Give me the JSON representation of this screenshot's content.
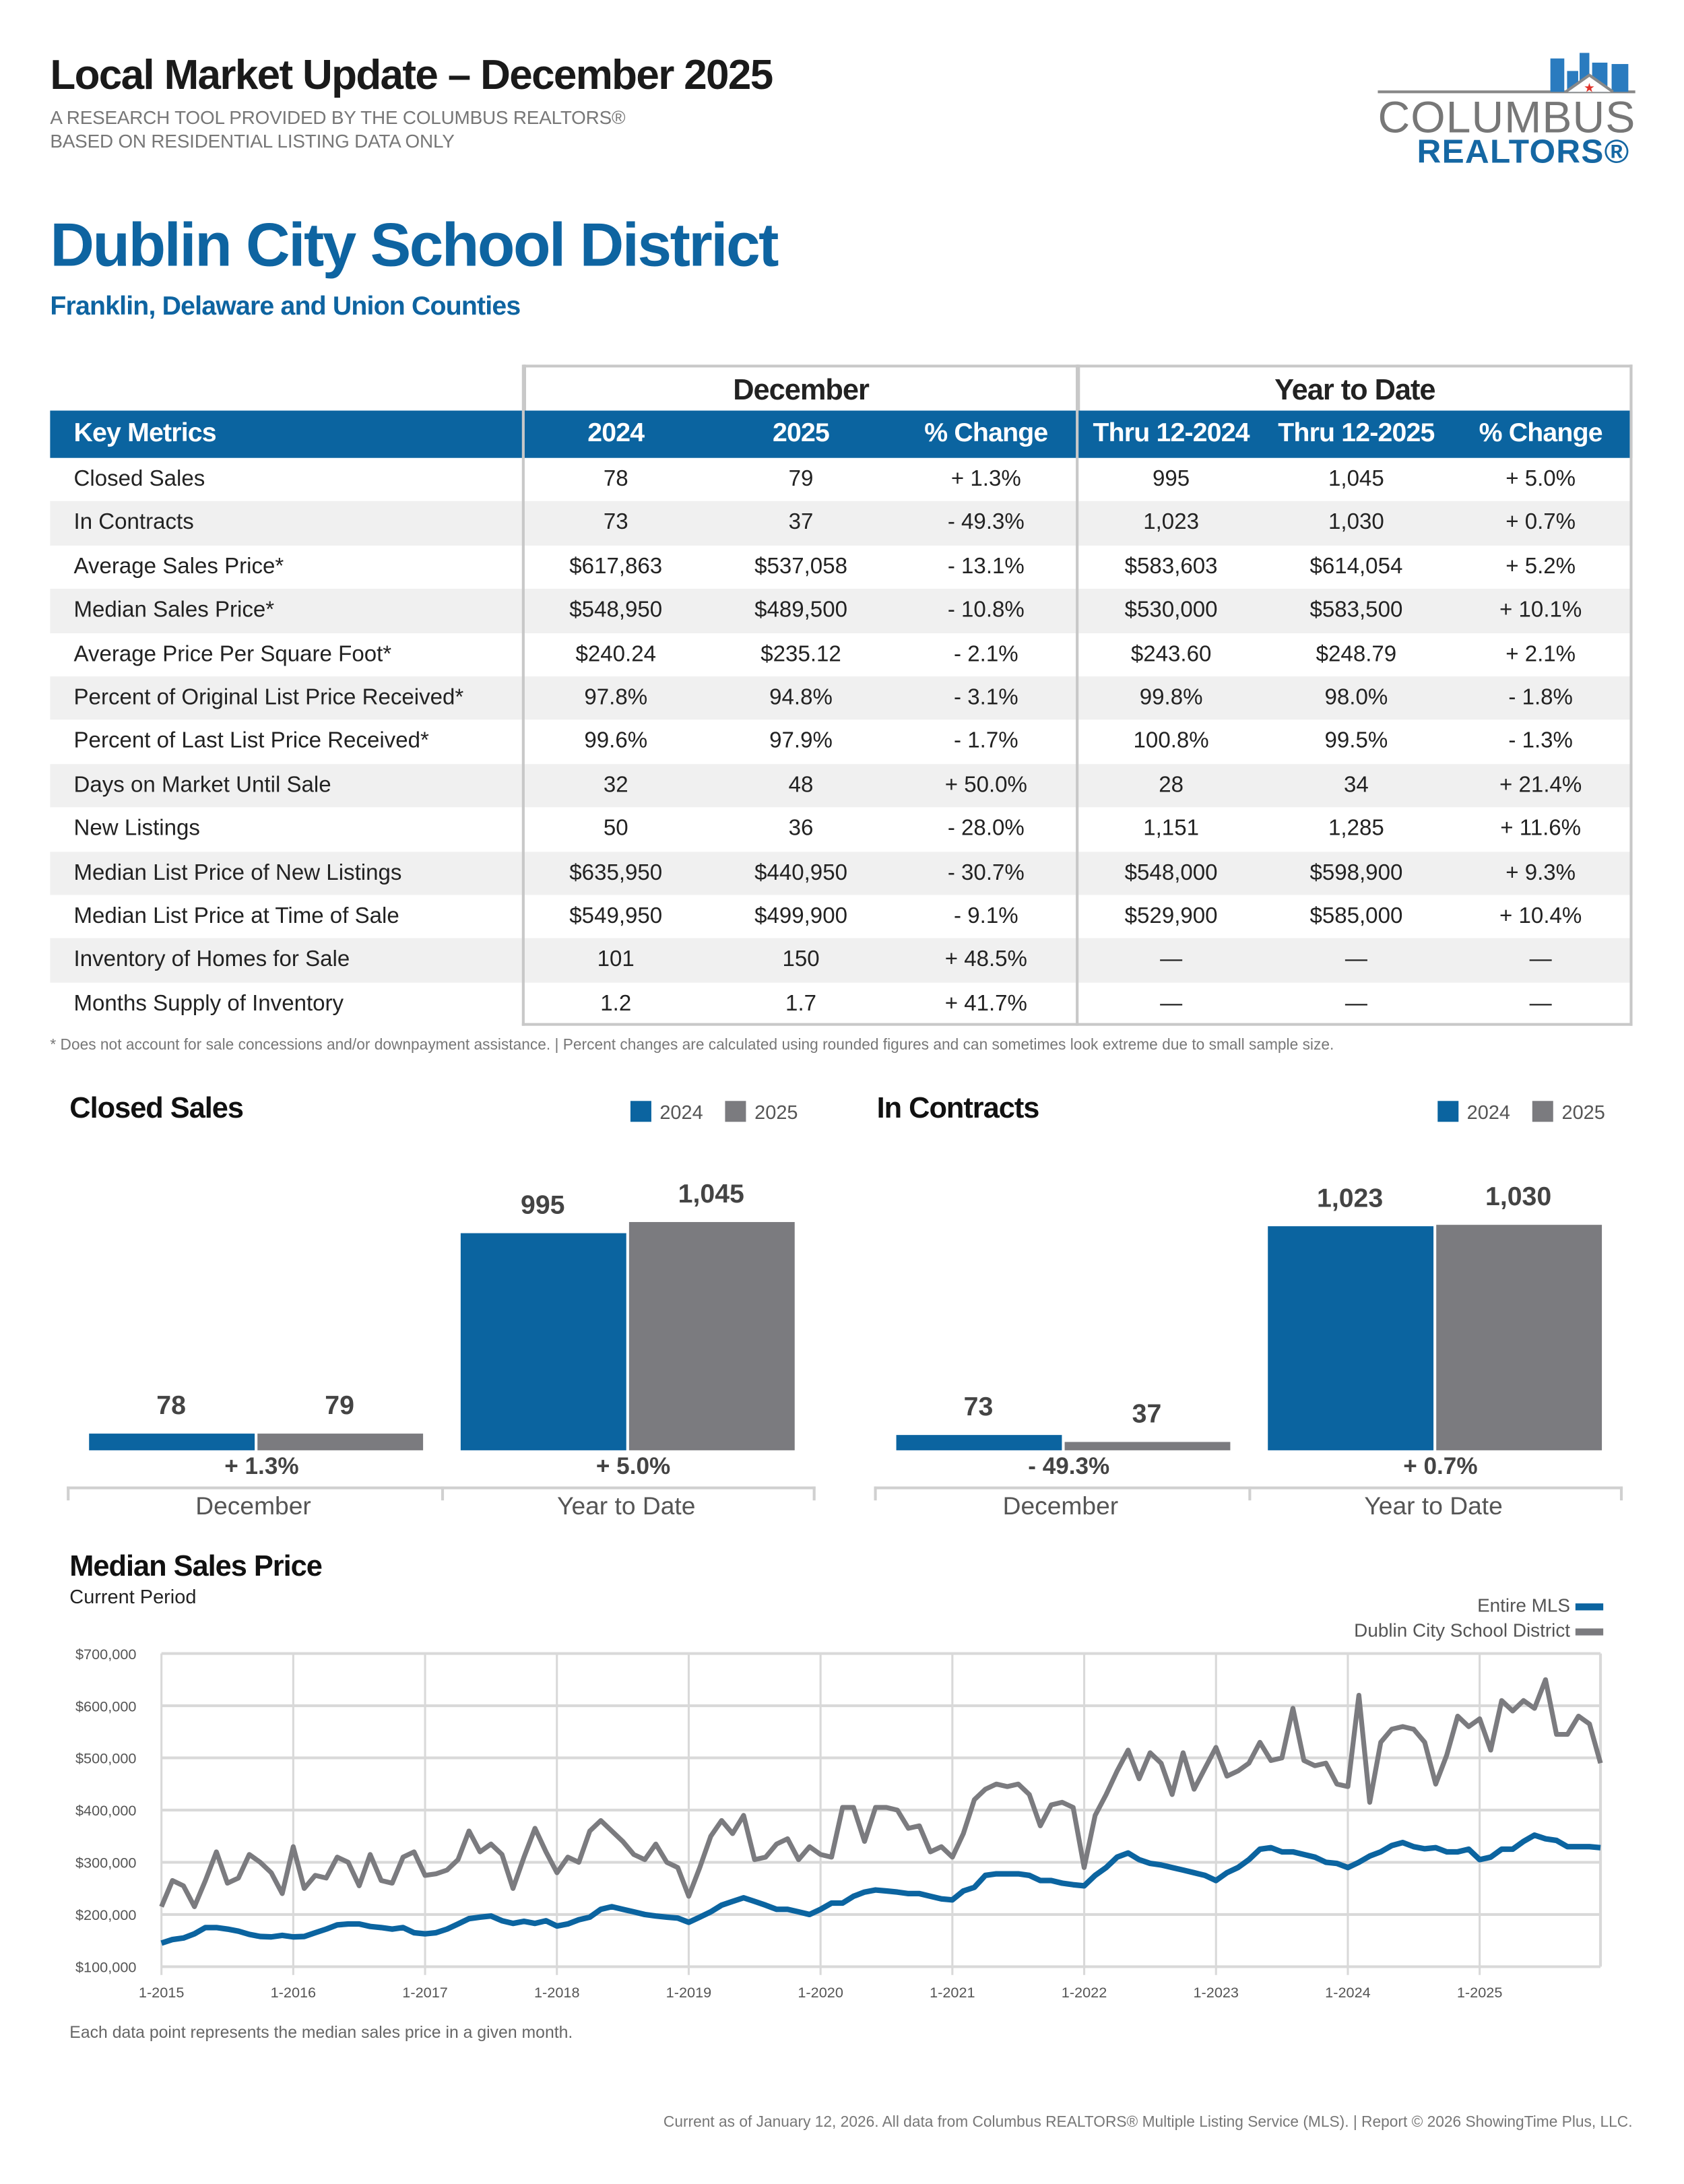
{
  "header": {
    "title": "Local Market Update – December 2025",
    "subtitle_1": "A RESEARCH TOOL PROVIDED BY THE COLUMBUS REALTORS®",
    "subtitle_2": "BASED ON RESIDENTIAL LISTING DATA ONLY",
    "logo_text_1": "COLUMBUS",
    "logo_text_2": "REALTORS®"
  },
  "area": {
    "name": "Dublin City School District",
    "counties": "Franklin, Delaware and Union Counties"
  },
  "table": {
    "group_month": "December",
    "group_ytd": "Year to Date",
    "columns": [
      "Key Metrics",
      "2024",
      "2025",
      "% Change",
      "Thru 12-2024",
      "Thru 12-2025",
      "% Change"
    ],
    "rows": [
      [
        "Closed Sales",
        "78",
        "79",
        "+ 1.3%",
        "995",
        "1,045",
        "+ 5.0%"
      ],
      [
        "In Contracts",
        "73",
        "37",
        "- 49.3%",
        "1,023",
        "1,030",
        "+ 0.7%"
      ],
      [
        "Average Sales Price*",
        "$617,863",
        "$537,058",
        "- 13.1%",
        "$583,603",
        "$614,054",
        "+ 5.2%"
      ],
      [
        "Median Sales Price*",
        "$548,950",
        "$489,500",
        "- 10.8%",
        "$530,000",
        "$583,500",
        "+ 10.1%"
      ],
      [
        "Average Price Per Square Foot*",
        "$240.24",
        "$235.12",
        "- 2.1%",
        "$243.60",
        "$248.79",
        "+ 2.1%"
      ],
      [
        "Percent of Original List Price Received*",
        "97.8%",
        "94.8%",
        "- 3.1%",
        "99.8%",
        "98.0%",
        "- 1.8%"
      ],
      [
        "Percent of Last List Price Received*",
        "99.6%",
        "97.9%",
        "- 1.7%",
        "100.8%",
        "99.5%",
        "- 1.3%"
      ],
      [
        "Days on Market Until Sale",
        "32",
        "48",
        "+ 50.0%",
        "28",
        "34",
        "+ 21.4%"
      ],
      [
        "New Listings",
        "50",
        "36",
        "- 28.0%",
        "1,151",
        "1,285",
        "+ 11.6%"
      ],
      [
        "Median List Price of New Listings",
        "$635,950",
        "$440,950",
        "- 30.7%",
        "$548,000",
        "$598,900",
        "+ 9.3%"
      ],
      [
        "Median List Price at Time of Sale",
        "$549,950",
        "$499,900",
        "- 9.1%",
        "$529,900",
        "$585,000",
        "+ 10.4%"
      ],
      [
        "Inventory of Homes for Sale",
        "101",
        "150",
        "+ 48.5%",
        "—",
        "—",
        "—"
      ],
      [
        "Months Supply of Inventory",
        "1.2",
        "1.7",
        "+ 41.7%",
        "—",
        "—",
        "—"
      ]
    ],
    "footnote": "* Does not account for sale concessions and/or downpayment assistance. | Percent changes are calculated using rounded figures and can sometimes look extreme due to small sample size."
  },
  "colors": {
    "blue": "#0b64a0",
    "gray": "#7b7b7f",
    "grid": "#d9d9d9"
  },
  "chart_data": [
    {
      "type": "bar",
      "title": "Closed Sales",
      "categories": [
        "December",
        "Year to Date"
      ],
      "series": [
        {
          "name": "2024",
          "values": [
            78,
            995
          ],
          "labels": [
            "78",
            "995"
          ]
        },
        {
          "name": "2025",
          "values": [
            79,
            1045
          ],
          "labels": [
            "79",
            "1,045"
          ]
        }
      ],
      "changes": [
        "+ 1.3%",
        "+ 5.0%"
      ],
      "legend": "top-right"
    },
    {
      "type": "bar",
      "title": "In Contracts",
      "categories": [
        "December",
        "Year to Date"
      ],
      "series": [
        {
          "name": "2024",
          "values": [
            73,
            1023
          ],
          "labels": [
            "73",
            "1,023"
          ]
        },
        {
          "name": "2025",
          "values": [
            37,
            1030
          ],
          "labels": [
            "37",
            "1,030"
          ]
        }
      ],
      "changes": [
        "- 49.3%",
        "+ 0.7%"
      ],
      "legend": "top-right"
    },
    {
      "type": "line",
      "title": "Median Sales Price",
      "subtitle": "Current Period",
      "note": "Each data point represents the median sales price in a given month.",
      "x_start": "1-2015",
      "x_end": "12-2025",
      "x_ticks": [
        "1-2015",
        "1-2016",
        "1-2017",
        "1-2018",
        "1-2019",
        "1-2020",
        "1-2021",
        "1-2022",
        "1-2023",
        "1-2024",
        "1-2025"
      ],
      "y_ticks": [
        "$100,000",
        "$200,000",
        "$300,000",
        "$400,000",
        "$500,000",
        "$600,000",
        "$700,000"
      ],
      "ylim": [
        100000,
        700000
      ],
      "grid": true,
      "legend": "top-right",
      "series": [
        {
          "name": "Entire MLS",
          "color": "#0b64a0",
          "values": [
            145000,
            152000,
            155000,
            163000,
            175000,
            175000,
            172000,
            168000,
            162000,
            158000,
            157000,
            160000,
            157000,
            158000,
            165000,
            172000,
            180000,
            182000,
            182000,
            177000,
            175000,
            172000,
            175000,
            165000,
            163000,
            165000,
            172000,
            182000,
            192000,
            195000,
            197000,
            188000,
            183000,
            187000,
            183000,
            188000,
            178000,
            182000,
            190000,
            195000,
            210000,
            215000,
            210000,
            205000,
            200000,
            197000,
            195000,
            193000,
            185000,
            195000,
            205000,
            218000,
            225000,
            232000,
            225000,
            218000,
            210000,
            210000,
            205000,
            200000,
            210000,
            222000,
            222000,
            235000,
            243000,
            247000,
            245000,
            243000,
            240000,
            240000,
            235000,
            230000,
            228000,
            245000,
            252000,
            275000,
            278000,
            278000,
            278000,
            275000,
            265000,
            265000,
            260000,
            257000,
            255000,
            275000,
            290000,
            310000,
            318000,
            305000,
            298000,
            295000,
            290000,
            285000,
            280000,
            275000,
            265000,
            280000,
            290000,
            305000,
            325000,
            328000,
            320000,
            320000,
            315000,
            310000,
            300000,
            298000,
            290000,
            300000,
            312000,
            320000,
            332000,
            338000,
            330000,
            326000,
            328000,
            320000,
            320000,
            325000,
            305000,
            310000,
            325000,
            325000,
            340000,
            352000,
            345000,
            342000,
            330000,
            330000,
            330000,
            328000
          ]
        },
        {
          "name": "Dublin City School District",
          "color": "#7b7b7f",
          "values": [
            215000,
            265000,
            255000,
            215000,
            265000,
            320000,
            260000,
            270000,
            315000,
            300000,
            280000,
            240000,
            330000,
            250000,
            275000,
            270000,
            310000,
            300000,
            255000,
            315000,
            265000,
            260000,
            310000,
            320000,
            275000,
            278000,
            285000,
            305000,
            360000,
            320000,
            335000,
            315000,
            250000,
            310000,
            365000,
            320000,
            280000,
            310000,
            300000,
            360000,
            380000,
            360000,
            340000,
            315000,
            305000,
            335000,
            300000,
            290000,
            235000,
            290000,
            350000,
            380000,
            355000,
            390000,
            305000,
            310000,
            335000,
            345000,
            305000,
            330000,
            315000,
            310000,
            405000,
            405000,
            340000,
            405000,
            405000,
            400000,
            365000,
            370000,
            320000,
            330000,
            310000,
            355000,
            420000,
            440000,
            450000,
            445000,
            450000,
            430000,
            370000,
            410000,
            415000,
            405000,
            290000,
            390000,
            430000,
            475000,
            515000,
            460000,
            510000,
            490000,
            430000,
            510000,
            440000,
            480000,
            520000,
            465000,
            475000,
            490000,
            530000,
            495000,
            500000,
            595000,
            495000,
            485000,
            490000,
            450000,
            445000,
            620000,
            415000,
            530000,
            555000,
            560000,
            555000,
            530000,
            450000,
            505000,
            580000,
            560000,
            575000,
            515000,
            610000,
            590000,
            610000,
            595000,
            650000,
            545000,
            545000,
            580000,
            565000,
            490000
          ]
        }
      ]
    }
  ],
  "footer": "Current as of January 12, 2026. All data from Columbus REALTORS® Multiple Listing Service (MLS). | Report © 2026 ShowingTime Plus, LLC."
}
